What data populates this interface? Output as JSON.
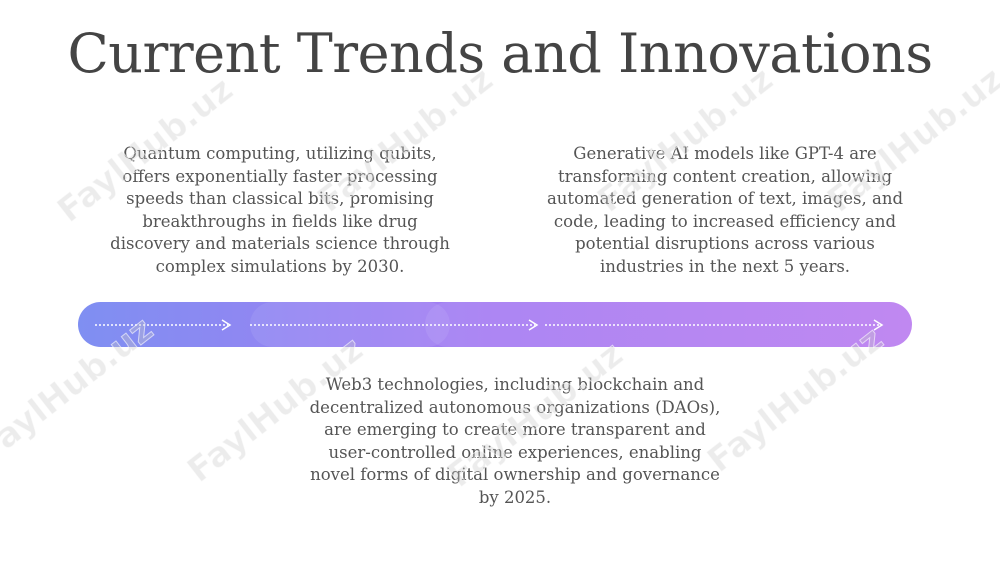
{
  "title": "Current Trends and Innovations",
  "items": [
    {
      "lines": [
        "Quantum computing, utilizing qubits,",
        "offers exponentially faster processing",
        "speeds than classical bits, promising",
        "breakthroughs in fields like drug",
        "discovery and materials science through",
        "complex simulations by 2030."
      ]
    },
    {
      "lines": [
        "Generative AI models like GPT-4 are",
        "transforming content creation, allowing",
        "automated generation of text, images, and",
        "code, leading to increased efficiency and",
        "potential disruptions across various",
        "industries in the next 5 years."
      ]
    },
    {
      "lines": [
        "Web3 technologies, including blockchain and",
        "decentralized autonomous organizations (DAOs),",
        "are emerging to create more transparent and",
        "user-controlled online experiences, enabling",
        "novel forms of digital ownership and governance",
        "by 2025."
      ]
    }
  ],
  "watermark": "FaylHub.uz"
}
